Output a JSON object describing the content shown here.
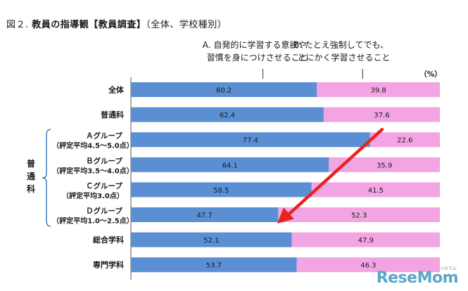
{
  "figure": {
    "number": "図２.",
    "title_main": "教員の指導観【教員調査】",
    "title_sub": "（全体、学校種別）"
  },
  "chart_data": {
    "type": "bar",
    "orientation": "horizontal",
    "stacked": true,
    "percent_scale": true,
    "unit_label": "（%）",
    "xlim": [
      0,
      100
    ],
    "grid": false,
    "legend_position": "top",
    "series": [
      {
        "name": "A. 自発的に学習する意欲や\n習慣を身につけさせること",
        "color": "#5b8fd4",
        "values": [
          60.2,
          62.4,
          77.4,
          64.1,
          58.5,
          47.7,
          52.1,
          53.7
        ]
      },
      {
        "name": "B. たとえ強制してでも、\nとにかく学習させること",
        "color": "#f2a5e2",
        "values": [
          39.8,
          37.6,
          22.6,
          35.9,
          41.5,
          52.3,
          47.9,
          46.3
        ]
      }
    ],
    "categories": [
      "全体",
      "普通科",
      "Ａグループ\n（評定平均4.5～5.0点）",
      "Ｂグループ\n（評定平均3.5～4.0点）",
      "Ｃグループ\n（評定平均3.0点）",
      "Ｄグループ\n（評定平均1.0～2.5点）",
      "総合学科",
      "専門学科"
    ],
    "group_bracket": {
      "label": "普通科",
      "covers": [
        "Ａグループ\n（評定平均4.5～5.0点）",
        "Ｂグループ\n（評定平均3.5～4.0点）",
        "Ｃグループ\n（評定平均3.0点）",
        "Ｄグループ\n（評定平均1.0～2.5点）"
      ]
    },
    "annotation_arrow": {
      "color": "#e8231c",
      "direction": "down-left",
      "from_category": "Ａグループ\n（評定平均4.5～5.0点）",
      "to_category": "Ｄグループ\n（評定平均1.0～2.5点）"
    }
  },
  "watermark": {
    "text": "ReseMom",
    "small_text": "リセマム"
  }
}
